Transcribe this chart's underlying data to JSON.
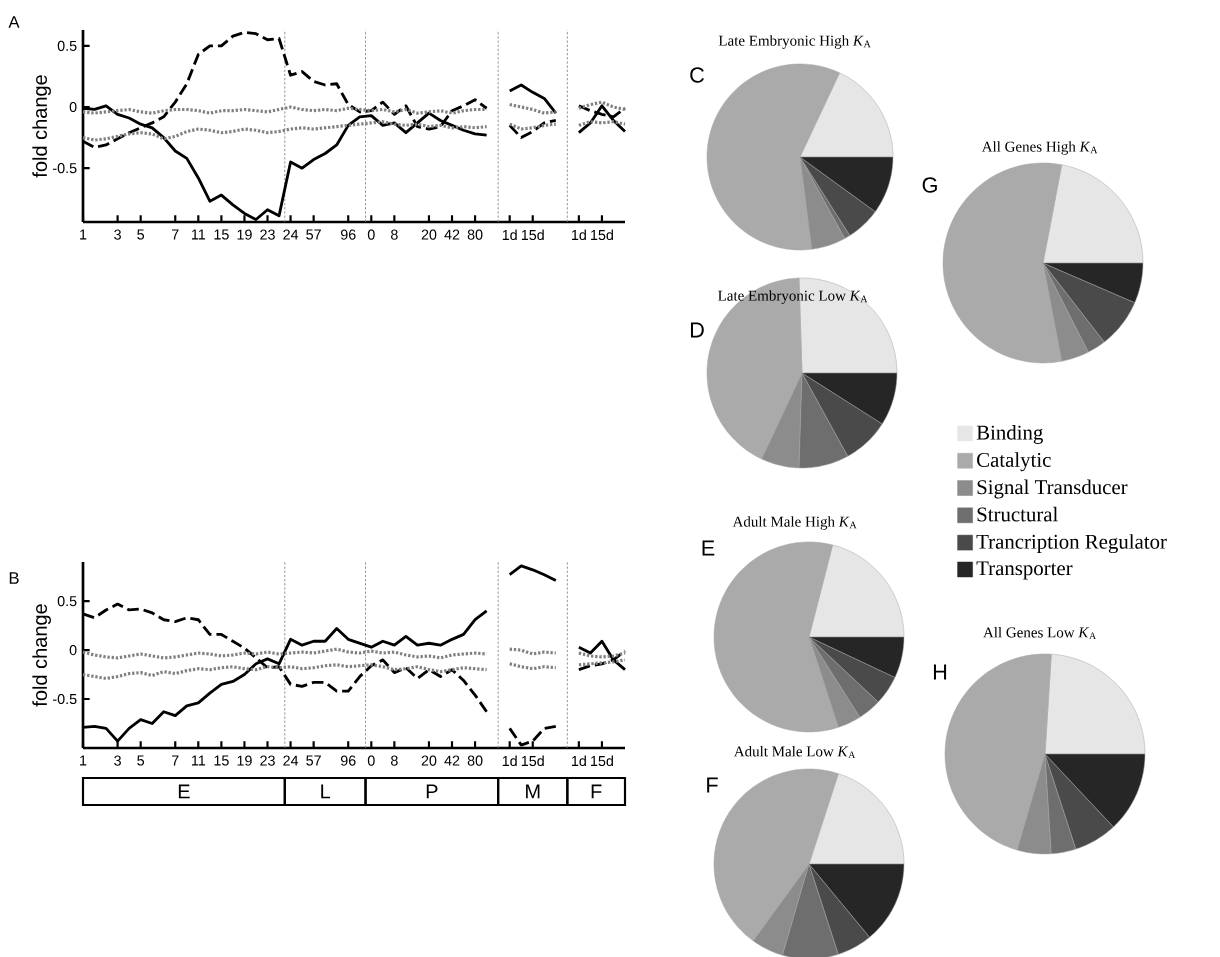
{
  "chart_data": [
    {
      "type": "line",
      "annotations": [
        "A"
      ],
      "ylabel": "fold change",
      "ylim": [
        -0.94,
        0.63
      ],
      "yticks": [
        -0.5,
        0,
        0.5
      ],
      "categories": [
        "1",
        null,
        null,
        "3",
        null,
        "5",
        null,
        null,
        "7",
        null,
        "11",
        null,
        "15",
        null,
        "19",
        null,
        "23",
        null,
        "24",
        null,
        "57",
        null,
        null,
        "96",
        null,
        "0",
        null,
        "8",
        null,
        null,
        "20",
        null,
        "42",
        null,
        "80",
        null,
        null,
        "1d",
        null,
        "15d",
        null,
        null,
        null,
        "1d",
        null,
        "15d",
        null,
        null
      ],
      "series": [
        {
          "color": "#000000",
          "line_style": "solid",
          "values": [
            -0.01,
            -0.02,
            0.01,
            -0.06,
            -0.09,
            -0.14,
            -0.17,
            -0.25,
            -0.36,
            -0.42,
            -0.58,
            -0.77,
            -0.72,
            -0.8,
            -0.87,
            -0.92,
            -0.84,
            -0.89,
            -0.45,
            -0.5,
            -0.43,
            -0.38,
            -0.31,
            -0.15,
            -0.08,
            -0.07,
            -0.15,
            -0.13,
            -0.21,
            -0.13,
            -0.05,
            -0.11,
            -0.15,
            -0.19,
            -0.22,
            -0.23,
            null,
            0.13,
            0.18,
            0.12,
            0.07,
            -0.05,
            null,
            -0.21,
            -0.13,
            0.01,
            -0.11,
            -0.2
          ]
        },
        {
          "color": "#000000",
          "line_style": "dashed",
          "values": [
            -0.28,
            -0.33,
            -0.31,
            -0.26,
            -0.21,
            -0.17,
            -0.13,
            -0.08,
            0.04,
            0.19,
            0.43,
            0.5,
            0.5,
            0.58,
            0.61,
            0.6,
            0.55,
            0.56,
            0.26,
            0.29,
            0.21,
            0.18,
            0.19,
            0.02,
            -0.04,
            -0.03,
            0.04,
            -0.06,
            0.01,
            -0.16,
            -0.18,
            -0.16,
            -0.03,
            0.01,
            0.06,
            -0.01,
            null,
            -0.15,
            -0.25,
            -0.2,
            -0.13,
            -0.11,
            null,
            0.01,
            -0.03,
            -0.06,
            -0.08,
            -0.01
          ]
        },
        {
          "color": "#808080",
          "line_style": "dotted",
          "values": [
            -0.04,
            -0.05,
            -0.04,
            -0.03,
            -0.02,
            -0.04,
            -0.05,
            -0.03,
            -0.02,
            -0.02,
            -0.03,
            -0.05,
            -0.03,
            -0.03,
            -0.02,
            -0.03,
            -0.04,
            -0.02,
            0.0,
            -0.02,
            -0.03,
            -0.02,
            -0.03,
            -0.01,
            -0.02,
            -0.03,
            -0.02,
            -0.04,
            -0.02,
            -0.05,
            -0.04,
            -0.03,
            -0.05,
            -0.03,
            -0.02,
            -0.02,
            null,
            0.02,
            0.0,
            -0.02,
            -0.05,
            -0.04,
            null,
            -0.01,
            0.02,
            0.04,
            0.0,
            -0.02
          ]
        },
        {
          "color": "#808080",
          "line_style": "dotted",
          "values": [
            -0.25,
            -0.27,
            -0.26,
            -0.24,
            -0.22,
            -0.21,
            -0.22,
            -0.26,
            -0.24,
            -0.2,
            -0.18,
            -0.19,
            -0.21,
            -0.2,
            -0.18,
            -0.19,
            -0.21,
            -0.2,
            -0.18,
            -0.17,
            -0.18,
            -0.17,
            -0.16,
            -0.15,
            -0.14,
            -0.13,
            -0.12,
            -0.14,
            -0.15,
            -0.14,
            -0.16,
            -0.15,
            -0.17,
            -0.16,
            -0.17,
            -0.16,
            null,
            -0.14,
            -0.18,
            -0.17,
            -0.15,
            -0.14,
            null,
            -0.15,
            -0.12,
            -0.13,
            -0.12,
            -0.14
          ]
        }
      ]
    },
    {
      "type": "line",
      "annotations": [
        "B",
        "E",
        "L",
        "P",
        "M",
        "F"
      ],
      "ylabel": "fold change",
      "ylim": [
        -1.0,
        0.9
      ],
      "yticks": [
        -0.5,
        0,
        0.5
      ],
      "categories": [
        "1",
        null,
        null,
        "3",
        null,
        "5",
        null,
        null,
        "7",
        null,
        "11",
        null,
        "15",
        null,
        "19",
        null,
        "23",
        null,
        "24",
        null,
        "57",
        null,
        null,
        "96",
        null,
        "0",
        null,
        "8",
        null,
        null,
        "20",
        null,
        "42",
        null,
        "80",
        null,
        null,
        "1d",
        null,
        "15d",
        null,
        null,
        null,
        "1d",
        null,
        "15d",
        null,
        null
      ],
      "series": [
        {
          "color": "#000000",
          "line_style": "solid",
          "values": [
            -0.79,
            -0.78,
            -0.8,
            -0.93,
            -0.8,
            -0.71,
            -0.75,
            -0.63,
            -0.67,
            -0.57,
            -0.54,
            -0.44,
            -0.35,
            -0.32,
            -0.25,
            -0.14,
            -0.09,
            -0.14,
            0.11,
            0.05,
            0.09,
            0.09,
            0.22,
            0.11,
            0.07,
            0.03,
            0.09,
            0.05,
            0.14,
            0.05,
            0.07,
            0.05,
            0.11,
            0.16,
            0.31,
            0.4,
            null,
            0.77,
            0.86,
            0.82,
            0.77,
            0.71,
            null,
            0.03,
            -0.03,
            0.09,
            -0.1,
            -0.2
          ]
        },
        {
          "color": "#000000",
          "line_style": "dashed",
          "values": [
            0.37,
            0.33,
            0.41,
            0.47,
            0.41,
            0.42,
            0.38,
            0.31,
            0.29,
            0.33,
            0.31,
            0.16,
            0.16,
            0.09,
            0.02,
            -0.08,
            -0.18,
            -0.17,
            -0.35,
            -0.37,
            -0.33,
            -0.33,
            -0.42,
            -0.42,
            -0.27,
            -0.16,
            -0.1,
            -0.23,
            -0.18,
            -0.29,
            -0.2,
            -0.27,
            -0.2,
            -0.31,
            -0.46,
            -0.63,
            null,
            -0.8,
            -0.97,
            -0.93,
            -0.8,
            -0.78,
            null,
            -0.2,
            -0.16,
            -0.14,
            -0.1,
            -0.01
          ]
        },
        {
          "color": "#808080",
          "line_style": "dotted",
          "values": [
            -0.02,
            -0.05,
            -0.07,
            -0.08,
            -0.06,
            -0.04,
            -0.06,
            -0.08,
            -0.07,
            -0.05,
            -0.03,
            -0.04,
            -0.06,
            -0.05,
            -0.03,
            -0.04,
            -0.02,
            -0.04,
            -0.03,
            -0.02,
            -0.03,
            -0.01,
            0.01,
            -0.02,
            -0.03,
            -0.01,
            -0.03,
            -0.02,
            -0.05,
            -0.07,
            -0.06,
            -0.08,
            -0.05,
            -0.04,
            -0.03,
            -0.04,
            null,
            0.01,
            0.0,
            -0.04,
            -0.02,
            -0.03,
            null,
            -0.03,
            -0.06,
            -0.07,
            -0.06,
            -0.03
          ]
        },
        {
          "color": "#808080",
          "line_style": "dotted",
          "values": [
            -0.25,
            -0.27,
            -0.29,
            -0.27,
            -0.24,
            -0.23,
            -0.26,
            -0.22,
            -0.24,
            -0.21,
            -0.19,
            -0.2,
            -0.18,
            -0.17,
            -0.19,
            -0.2,
            -0.17,
            -0.18,
            -0.17,
            -0.19,
            -0.18,
            -0.16,
            -0.15,
            -0.17,
            -0.16,
            -0.15,
            -0.17,
            -0.2,
            -0.19,
            -0.17,
            -0.2,
            -0.22,
            -0.2,
            -0.18,
            -0.19,
            -0.2,
            null,
            -0.14,
            -0.17,
            -0.19,
            -0.17,
            -0.18,
            null,
            -0.15,
            -0.14,
            -0.13,
            -0.12,
            -0.1
          ]
        }
      ]
    },
    {
      "type": "pie",
      "title": "Late Embryonic High *K*$_{A}$",
      "annotations": [
        "C"
      ],
      "categories": [
        null,
        null,
        null,
        null,
        null,
        null
      ],
      "values": [
        18,
        59,
        6,
        1,
        6,
        10
      ],
      "colors": [
        "#e6e6e6",
        "#aaaaaa",
        "#8c8c8c",
        "#6e6e6e",
        "#4a4a4a",
        "#262626"
      ]
    },
    {
      "type": "pie",
      "title": "Late Embryonic Low *K*$_{A}$",
      "annotations": [
        "D"
      ],
      "categories": [
        null,
        null,
        null,
        null,
        null,
        null
      ],
      "values": [
        25.5,
        42.5,
        6.5,
        8.5,
        8,
        9
      ],
      "colors": [
        "#e6e6e6",
        "#aaaaaa",
        "#8c8c8c",
        "#6e6e6e",
        "#4a4a4a",
        "#262626"
      ]
    },
    {
      "type": "pie",
      "title": "Adult Male High *K*$_{A}$",
      "annotations": [
        "E"
      ],
      "categories": [
        null,
        null,
        null,
        null,
        null,
        null
      ],
      "values": [
        21,
        59,
        4,
        4,
        5,
        7
      ],
      "colors": [
        "#e6e6e6",
        "#aaaaaa",
        "#8c8c8c",
        "#6e6e6e",
        "#4a4a4a",
        "#262626"
      ]
    },
    {
      "type": "pie",
      "title": "Adult Male Low *K*$_{A}$",
      "annotations": [
        "F"
      ],
      "categories": [
        null,
        null,
        null,
        null,
        null,
        null
      ],
      "values": [
        20,
        45,
        5.5,
        9.5,
        6,
        14
      ],
      "colors": [
        "#e6e6e6",
        "#aaaaaa",
        "#8c8c8c",
        "#6e6e6e",
        "#4a4a4a",
        "#262626"
      ]
    },
    {
      "type": "pie",
      "title": "All Genes High *K*$_{A}$",
      "annotations": [
        "G"
      ],
      "legend": "bottom",
      "categories": [
        "Binding",
        "Catalytic",
        "Signal Transducer",
        "Structural",
        "Trancription Regulator",
        "Transporter"
      ],
      "values": [
        22,
        56,
        4.5,
        3,
        8,
        6.5
      ],
      "colors": [
        "#e6e6e6",
        "#aaaaaa",
        "#8c8c8c",
        "#6e6e6e",
        "#4a4a4a",
        "#262626"
      ]
    },
    {
      "type": "pie",
      "title": "All Genes Low *K*$_{A}$",
      "annotations": [
        "H"
      ],
      "categories": [
        null,
        null,
        null,
        null,
        null,
        null
      ],
      "values": [
        24,
        46.5,
        5.5,
        4,
        7,
        13
      ],
      "colors": [
        "#e6e6e6",
        "#aaaaaa",
        "#8c8c8c",
        "#6e6e6e",
        "#4a4a4a",
        "#262626"
      ]
    }
  ]
}
